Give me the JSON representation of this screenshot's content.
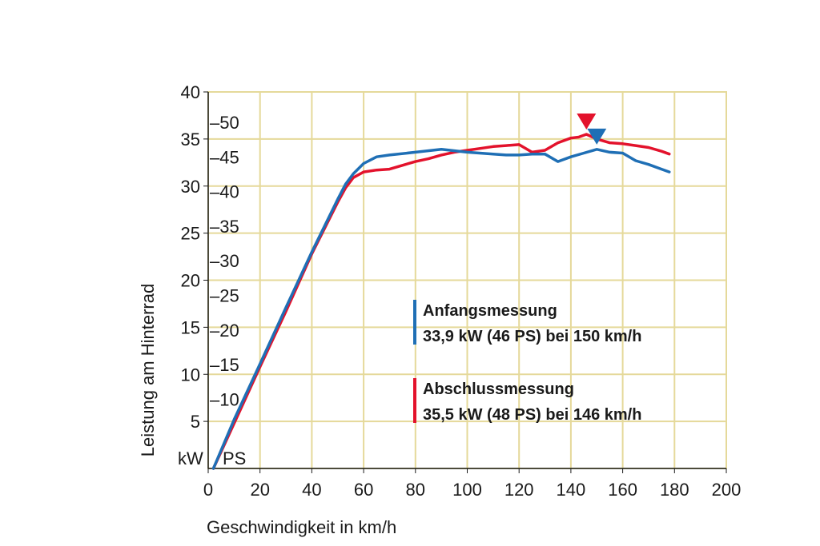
{
  "chart_data": {
    "type": "line",
    "xlabel": "Geschwindigkeit in km/h",
    "ylabel": "Leistung am Hinterrad",
    "xlim": [
      0,
      200
    ],
    "ylim": [
      0,
      40
    ],
    "x_ticks": [
      "0",
      "20",
      "40",
      "60",
      "80",
      "100",
      "120",
      "140",
      "160",
      "180",
      "200"
    ],
    "y_ticks_kw": [
      "5",
      "10",
      "15",
      "20",
      "25",
      "30",
      "35",
      "40"
    ],
    "y_ticks_ps": [
      "–10",
      "–15",
      "–20",
      "–25",
      "–30",
      "–35",
      "–40",
      "–45",
      "–50"
    ],
    "y_ticks_ps_values": [
      10,
      15,
      20,
      25,
      30,
      35,
      40,
      45,
      50
    ],
    "kw_unit_label": "kW",
    "ps_unit_label": "PS",
    "grid": true,
    "series": [
      {
        "name": "Anfangsmessung",
        "summary": "33,9 kW (46 PS) bei 150 km/h",
        "color": "#1f6fb5",
        "peak": [
          150,
          33.9
        ],
        "x": [
          2,
          10,
          20,
          30,
          40,
          50,
          53,
          56,
          60,
          65,
          70,
          80,
          90,
          100,
          110,
          115,
          120,
          125,
          130,
          135,
          140,
          145,
          150,
          155,
          160,
          165,
          170,
          175,
          178
        ],
        "y": [
          0,
          5.2,
          11.1,
          17.1,
          23.0,
          28.6,
          30.2,
          31.3,
          32.4,
          33.1,
          33.3,
          33.6,
          33.9,
          33.6,
          33.4,
          33.3,
          33.3,
          33.4,
          33.4,
          32.6,
          33.1,
          33.5,
          33.9,
          33.6,
          33.5,
          32.7,
          32.3,
          31.8,
          31.5
        ]
      },
      {
        "name": "Abschlussmessung",
        "summary": "35,5 kW (48 PS) bei 146 km/h",
        "color": "#e3122c",
        "peak": [
          146,
          35.5
        ],
        "x": [
          2,
          10,
          20,
          30,
          40,
          50,
          53,
          56,
          60,
          65,
          70,
          75,
          80,
          85,
          90,
          95,
          100,
          105,
          110,
          115,
          120,
          125,
          130,
          135,
          140,
          143,
          146,
          150,
          155,
          160,
          165,
          170,
          175,
          178
        ],
        "y": [
          0,
          4.8,
          10.8,
          16.7,
          22.8,
          28.3,
          29.8,
          30.9,
          31.5,
          31.7,
          31.8,
          32.2,
          32.6,
          32.9,
          33.3,
          33.6,
          33.8,
          34.0,
          34.2,
          34.3,
          34.4,
          33.6,
          33.8,
          34.6,
          35.1,
          35.2,
          35.5,
          35.0,
          34.6,
          34.5,
          34.3,
          34.1,
          33.7,
          33.4
        ]
      }
    ]
  }
}
